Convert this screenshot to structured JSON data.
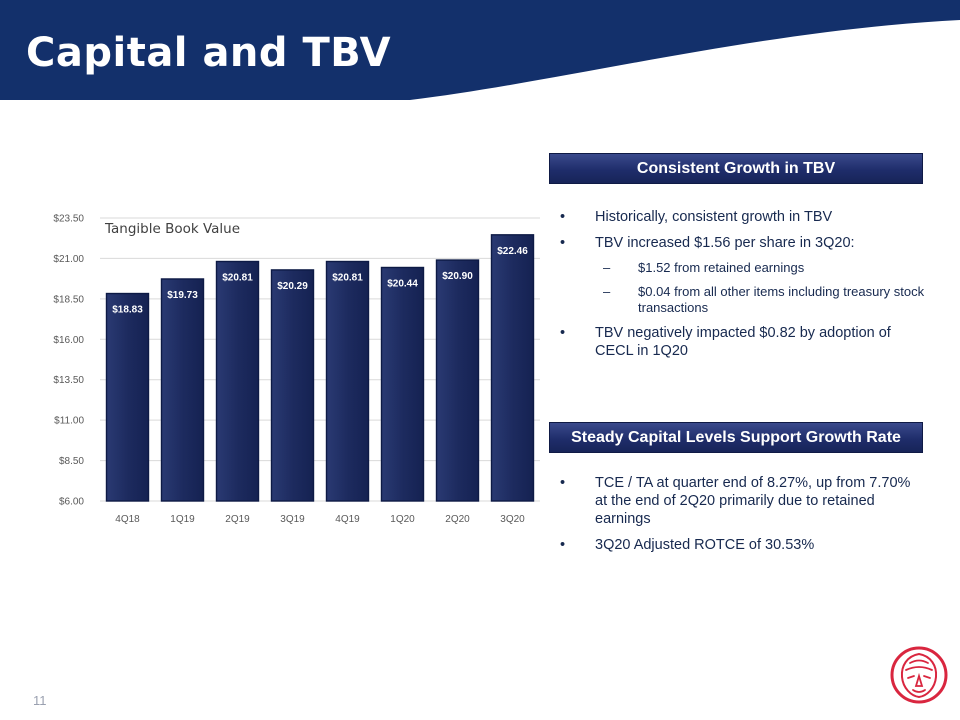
{
  "slide": {
    "title": "Capital and TBV",
    "page_number": "11",
    "colors": {
      "header": "#13306b",
      "bar": "#1d2b5f",
      "text": "#17294f",
      "logo": "#d9263f"
    }
  },
  "sections": {
    "growth": {
      "heading": "Consistent Growth in TBV",
      "bullets": [
        {
          "text": "Historically, consistent growth in TBV",
          "subs": []
        },
        {
          "text": "TBV increased $1.56 per share in 3Q20:",
          "subs": [
            "$1.52 from retained earnings",
            "$0.04 from all other items including treasury stock transactions"
          ]
        },
        {
          "text": "TBV negatively impacted $0.82 by adoption of CECL in 1Q20",
          "subs": []
        }
      ]
    },
    "capital": {
      "heading": "Steady Capital Levels Support Growth Rate",
      "bullets": [
        {
          "text": "TCE / TA at quarter end of 8.27%, up from 7.70% at the end of 2Q20 primarily due to retained earnings",
          "subs": []
        },
        {
          "text": "3Q20 Adjusted ROTCE of 30.53%",
          "subs": []
        }
      ]
    }
  },
  "chart_data": {
    "type": "bar",
    "title": "Tangible Book Value",
    "categories": [
      "4Q18",
      "1Q19",
      "2Q19",
      "3Q19",
      "4Q19",
      "1Q20",
      "2Q20",
      "3Q20"
    ],
    "values": [
      18.83,
      19.73,
      20.81,
      20.29,
      20.81,
      20.44,
      20.9,
      22.46
    ],
    "labels": [
      "$18.83",
      "$19.73",
      "$20.81",
      "$20.29",
      "$20.81",
      "$20.44",
      "$20.90",
      "$22.46"
    ],
    "ylim": [
      6.0,
      23.5
    ],
    "yticks": [
      6.0,
      8.5,
      11.0,
      13.5,
      16.0,
      18.5,
      21.0,
      23.5
    ],
    "ytick_labels": [
      "$6.00",
      "$8.50",
      "$11.00",
      "$13.50",
      "$16.00",
      "$18.50",
      "$21.00",
      "$23.50"
    ],
    "xlabel": "",
    "ylabel": "",
    "grid": true,
    "legend": "none"
  }
}
